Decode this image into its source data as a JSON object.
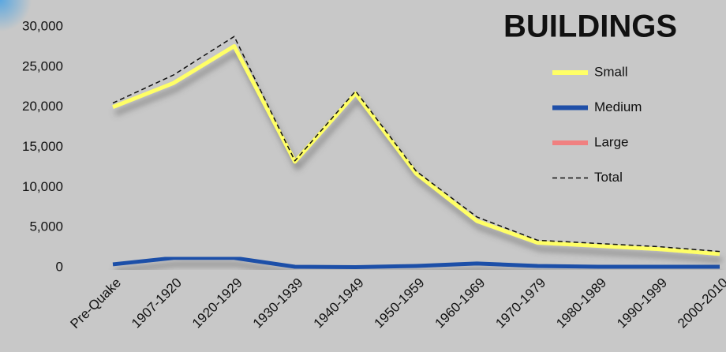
{
  "chart_data": {
    "type": "line",
    "title": "BUILDINGS",
    "categories": [
      "Pre-Quake",
      "1907-1920",
      "1920-1929",
      "1930-1939",
      "1940-1949",
      "1950-1959",
      "1960-1969",
      "1970-1979",
      "1980-1989",
      "1990-1999",
      "2000-2010"
    ],
    "series": [
      {
        "name": "Small",
        "color": "#ffff66",
        "linestyle": "solid",
        "values": [
          20000,
          23000,
          27600,
          13200,
          21700,
          11700,
          5800,
          3100,
          2700,
          2300,
          1700
        ]
      },
      {
        "name": "Medium",
        "color": "#1f4fa8",
        "linestyle": "solid",
        "values": [
          400,
          1200,
          1200,
          100,
          50,
          200,
          500,
          200,
          100,
          100,
          100
        ]
      },
      {
        "name": "Large",
        "color": "#f08080",
        "linestyle": "solid",
        "values": [
          0,
          0,
          0,
          0,
          0,
          0,
          0,
          0,
          0,
          0,
          0
        ]
      },
      {
        "name": "Total",
        "color": "#111111",
        "linestyle": "dashed",
        "values": [
          20500,
          24000,
          28800,
          13300,
          22000,
          12000,
          6300,
          3400,
          3000,
          2600,
          2000
        ]
      }
    ],
    "ylim": [
      0,
      30000
    ],
    "yticks": [
      0,
      {
        "value": 5000,
        "label": "5,000"
      },
      {
        "value": 10000,
        "label": "10,000"
      },
      {
        "value": 15000,
        "label": "15,000"
      },
      {
        "value": 20000,
        "label": "20,000"
      },
      {
        "value": 25000,
        "label": "25,000"
      },
      {
        "value": 30000,
        "label": "30,000"
      }
    ],
    "grid": false
  }
}
